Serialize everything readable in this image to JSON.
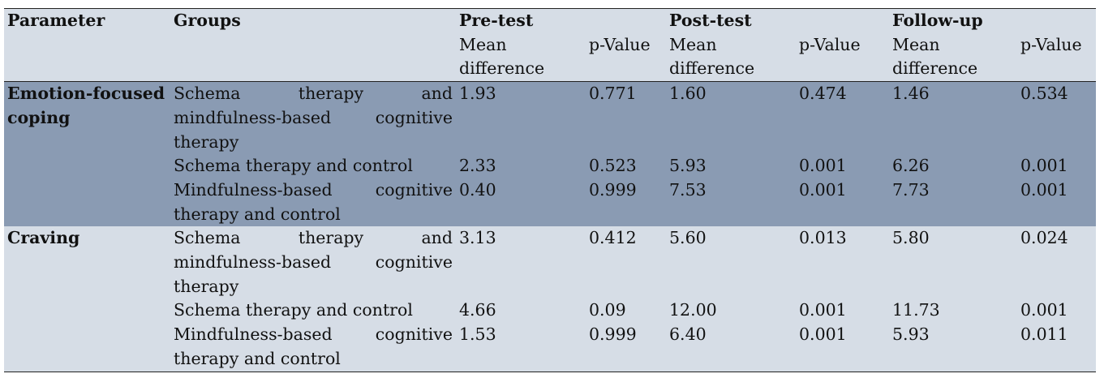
{
  "table": {
    "header": {
      "parameter": "Parameter",
      "groups": "Groups",
      "pretest": "Pre-test",
      "posttest": "Post-test",
      "followup": "Follow-up",
      "mean_difference": "Mean difference",
      "p_value": "p-Value"
    },
    "sections": [
      {
        "parameter": "Emotion-focused coping",
        "rows": [
          {
            "group": "Schema therapy and mindfulness-based cognitive therapy",
            "pre_md": "1.93",
            "pre_p": "0.771",
            "post_md": "1.60",
            "post_p": "0.474",
            "fu_md": "1.46",
            "fu_p": "0.534"
          },
          {
            "group": "Schema therapy and control",
            "pre_md": "2.33",
            "pre_p": "0.523",
            "post_md": "5.93",
            "post_p": "0.001",
            "fu_md": "6.26",
            "fu_p": "0.001"
          },
          {
            "group": "Mindfulness-based cognitive therapy and control",
            "pre_md": "0.40",
            "pre_p": "0.999",
            "post_md": "7.53",
            "post_p": "0.001",
            "fu_md": "7.73",
            "fu_p": "0.001"
          }
        ]
      },
      {
        "parameter": "Craving",
        "rows": [
          {
            "group": "Schema therapy and mindfulness-based cognitive therapy",
            "pre_md": "3.13",
            "pre_p": "0.412",
            "post_md": "5.60",
            "post_p": "0.013",
            "fu_md": "5.80",
            "fu_p": "0.024"
          },
          {
            "group": "Schema therapy and control",
            "pre_md": "4.66",
            "pre_p": "0.09",
            "post_md": "12.00",
            "post_p": "0.001",
            "fu_md": "11.73",
            "fu_p": "0.001"
          },
          {
            "group": "Mindfulness-based cognitive therapy and control",
            "pre_md": "1.53",
            "pre_p": "0.999",
            "post_md": "6.40",
            "post_p": "0.001",
            "fu_md": "5.93",
            "fu_p": "0.011"
          }
        ]
      }
    ]
  },
  "colors": {
    "header_band": "#d6dde6",
    "dark_band": "#8a9bb3",
    "light_band": "#d6dde6"
  }
}
